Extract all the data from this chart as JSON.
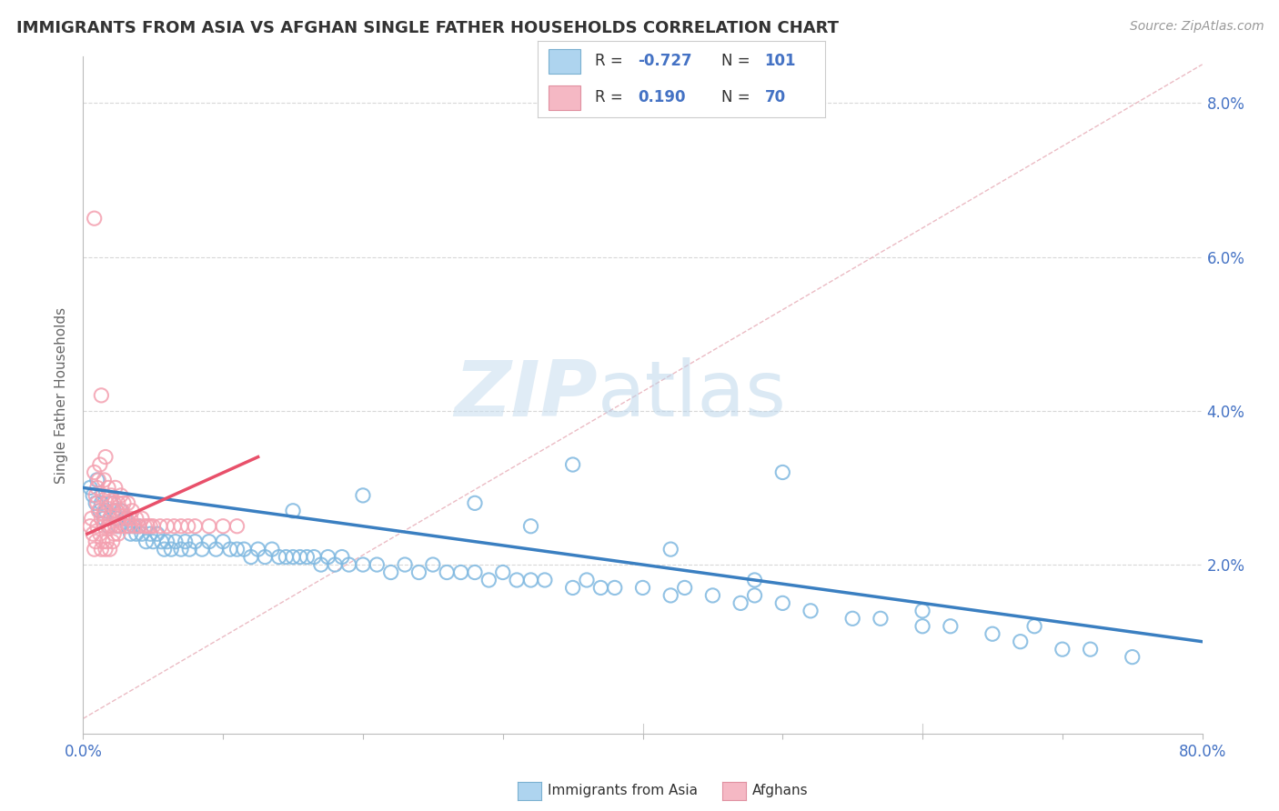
{
  "title": "IMMIGRANTS FROM ASIA VS AFGHAN SINGLE FATHER HOUSEHOLDS CORRELATION CHART",
  "source": "Source: ZipAtlas.com",
  "ylabel": "Single Father Households",
  "y_ticks": [
    0.0,
    0.02,
    0.04,
    0.06,
    0.08
  ],
  "y_tick_labels": [
    "",
    "2.0%",
    "4.0%",
    "6.0%",
    "8.0%"
  ],
  "x_range": [
    0.0,
    0.8
  ],
  "y_range": [
    -0.002,
    0.086
  ],
  "legend_R1": "-0.727",
  "legend_N1": "101",
  "legend_R2": "0.190",
  "legend_N2": "70",
  "blue_color": "#7fb8e0",
  "pink_color": "#f4a0b0",
  "blue_line_color": "#3a7fc1",
  "pink_line_color": "#e8506a",
  "ref_line_color": "#e8b0ba",
  "background_color": "#ffffff",
  "title_color": "#333333",
  "axis_label_color": "#4472c4",
  "grid_color": "#d8d8d8",
  "blue_scatter_x": [
    0.005,
    0.007,
    0.009,
    0.01,
    0.012,
    0.013,
    0.015,
    0.016,
    0.018,
    0.02,
    0.022,
    0.024,
    0.025,
    0.027,
    0.03,
    0.032,
    0.034,
    0.036,
    0.038,
    0.04,
    0.042,
    0.045,
    0.048,
    0.05,
    0.053,
    0.056,
    0.058,
    0.06,
    0.063,
    0.066,
    0.07,
    0.073,
    0.076,
    0.08,
    0.085,
    0.09,
    0.095,
    0.1,
    0.105,
    0.11,
    0.115,
    0.12,
    0.125,
    0.13,
    0.135,
    0.14,
    0.145,
    0.15,
    0.155,
    0.16,
    0.165,
    0.17,
    0.175,
    0.18,
    0.185,
    0.19,
    0.2,
    0.21,
    0.22,
    0.23,
    0.24,
    0.25,
    0.26,
    0.27,
    0.28,
    0.29,
    0.3,
    0.31,
    0.32,
    0.33,
    0.35,
    0.36,
    0.37,
    0.38,
    0.4,
    0.42,
    0.43,
    0.45,
    0.47,
    0.48,
    0.5,
    0.52,
    0.55,
    0.57,
    0.6,
    0.62,
    0.65,
    0.67,
    0.7,
    0.72,
    0.75,
    0.5,
    0.35,
    0.28,
    0.2,
    0.15,
    0.32,
    0.42,
    0.48,
    0.6,
    0.68
  ],
  "blue_scatter_y": [
    0.03,
    0.029,
    0.028,
    0.031,
    0.027,
    0.028,
    0.026,
    0.027,
    0.025,
    0.028,
    0.027,
    0.026,
    0.025,
    0.027,
    0.026,
    0.025,
    0.024,
    0.025,
    0.024,
    0.025,
    0.024,
    0.023,
    0.024,
    0.023,
    0.024,
    0.023,
    0.022,
    0.023,
    0.022,
    0.023,
    0.022,
    0.023,
    0.022,
    0.023,
    0.022,
    0.023,
    0.022,
    0.023,
    0.022,
    0.022,
    0.022,
    0.021,
    0.022,
    0.021,
    0.022,
    0.021,
    0.021,
    0.021,
    0.021,
    0.021,
    0.021,
    0.02,
    0.021,
    0.02,
    0.021,
    0.02,
    0.02,
    0.02,
    0.019,
    0.02,
    0.019,
    0.02,
    0.019,
    0.019,
    0.019,
    0.018,
    0.019,
    0.018,
    0.018,
    0.018,
    0.017,
    0.018,
    0.017,
    0.017,
    0.017,
    0.016,
    0.017,
    0.016,
    0.015,
    0.016,
    0.015,
    0.014,
    0.013,
    0.013,
    0.012,
    0.012,
    0.011,
    0.01,
    0.009,
    0.009,
    0.008,
    0.032,
    0.033,
    0.028,
    0.029,
    0.027,
    0.025,
    0.022,
    0.018,
    0.014,
    0.012
  ],
  "pink_scatter_x": [
    0.005,
    0.006,
    0.007,
    0.008,
    0.008,
    0.009,
    0.009,
    0.01,
    0.01,
    0.01,
    0.011,
    0.011,
    0.012,
    0.012,
    0.013,
    0.013,
    0.014,
    0.014,
    0.015,
    0.015,
    0.015,
    0.016,
    0.016,
    0.017,
    0.017,
    0.018,
    0.018,
    0.019,
    0.019,
    0.02,
    0.02,
    0.021,
    0.021,
    0.022,
    0.022,
    0.023,
    0.023,
    0.024,
    0.025,
    0.025,
    0.026,
    0.027,
    0.027,
    0.028,
    0.029,
    0.03,
    0.031,
    0.032,
    0.033,
    0.034,
    0.035,
    0.037,
    0.038,
    0.04,
    0.042,
    0.044,
    0.046,
    0.048,
    0.05,
    0.055,
    0.06,
    0.065,
    0.07,
    0.075,
    0.08,
    0.09,
    0.1,
    0.11,
    0.008,
    0.013
  ],
  "pink_scatter_y": [
    0.025,
    0.026,
    0.024,
    0.032,
    0.022,
    0.029,
    0.023,
    0.028,
    0.025,
    0.03,
    0.031,
    0.027,
    0.033,
    0.024,
    0.026,
    0.022,
    0.029,
    0.023,
    0.031,
    0.025,
    0.027,
    0.034,
    0.022,
    0.028,
    0.023,
    0.03,
    0.025,
    0.026,
    0.022,
    0.029,
    0.025,
    0.027,
    0.023,
    0.028,
    0.024,
    0.03,
    0.025,
    0.027,
    0.028,
    0.024,
    0.026,
    0.029,
    0.025,
    0.027,
    0.028,
    0.025,
    0.026,
    0.028,
    0.025,
    0.026,
    0.027,
    0.025,
    0.026,
    0.025,
    0.026,
    0.025,
    0.025,
    0.025,
    0.025,
    0.025,
    0.025,
    0.025,
    0.025,
    0.025,
    0.025,
    0.025,
    0.025,
    0.025,
    0.065,
    0.042
  ],
  "blue_line_x": [
    0.0,
    0.8
  ],
  "blue_line_y": [
    0.03,
    0.01
  ],
  "pink_line_x": [
    0.003,
    0.125
  ],
  "pink_line_y": [
    0.024,
    0.034
  ],
  "ref_line_x": [
    0.0,
    0.8
  ],
  "ref_line_y": [
    0.0,
    0.085
  ]
}
